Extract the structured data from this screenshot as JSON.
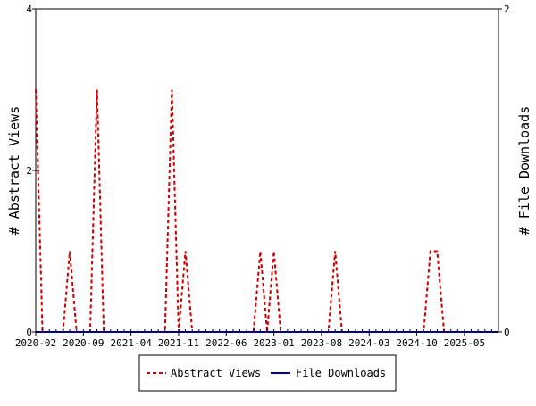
{
  "chart_data": {
    "type": "line",
    "title": "",
    "xlabel": "",
    "ylabel": "# Abstract Views",
    "y2label": "# File Downloads",
    "ylim": [
      0,
      4
    ],
    "y2lim": [
      0,
      2
    ],
    "yticks": [
      "0",
      "2",
      "4"
    ],
    "y2ticks": [
      "0",
      "2"
    ],
    "xlim": [
      "2020-02",
      "2025-10"
    ],
    "xtick_labels": [
      "2020-02",
      "2020-09",
      "2021-04",
      "2021-11",
      "2022-06",
      "2023-01",
      "2023-08",
      "2024-03",
      "2024-10",
      "2025-05"
    ],
    "grid": false,
    "legend_position": "bottom",
    "series": [
      {
        "name": "Abstract Views",
        "axis": "left",
        "color": "#cc0000",
        "style": "dashed",
        "x": [
          "2020-02",
          "2020-03",
          "2020-04",
          "2020-05",
          "2020-06",
          "2020-07",
          "2020-08",
          "2020-09",
          "2020-10",
          "2020-11",
          "2020-12",
          "2021-01",
          "2021-02",
          "2021-03",
          "2021-04",
          "2021-05",
          "2021-06",
          "2021-07",
          "2021-08",
          "2021-09",
          "2021-10",
          "2021-11",
          "2021-12",
          "2022-01",
          "2022-02",
          "2022-03",
          "2022-04",
          "2022-05",
          "2022-06",
          "2022-07",
          "2022-08",
          "2022-09",
          "2022-10",
          "2022-11",
          "2022-12",
          "2023-01",
          "2023-02",
          "2023-03",
          "2023-04",
          "2023-05",
          "2023-06",
          "2023-07",
          "2023-08",
          "2023-09",
          "2023-10",
          "2023-11",
          "2023-12",
          "2024-01",
          "2024-02",
          "2024-03",
          "2024-04",
          "2024-05",
          "2024-06",
          "2024-07",
          "2024-08",
          "2024-09",
          "2024-10",
          "2024-11",
          "2024-12",
          "2025-01",
          "2025-02",
          "2025-03",
          "2025-04",
          "2025-05",
          "2025-06",
          "2025-07",
          "2025-08",
          "2025-09",
          "2025-10"
        ],
        "values": [
          3,
          0,
          0,
          0,
          0,
          1,
          0,
          0,
          0,
          3,
          0,
          0,
          0,
          0,
          0,
          0,
          0,
          0,
          0,
          0,
          3,
          0,
          1,
          0,
          0,
          0,
          0,
          0,
          0,
          0,
          0,
          0,
          0,
          1,
          0,
          1,
          0,
          0,
          0,
          0,
          0,
          0,
          0,
          0,
          1,
          0,
          0,
          0,
          0,
          0,
          0,
          0,
          0,
          0,
          0,
          0,
          0,
          0,
          1,
          1,
          0,
          0,
          0,
          0,
          0,
          0,
          0,
          0,
          0
        ]
      },
      {
        "name": "File Downloads",
        "axis": "right",
        "color": "#000099",
        "style": "solid",
        "x": [
          "2020-02",
          "2025-10"
        ],
        "values": [
          0,
          0
        ]
      }
    ]
  }
}
